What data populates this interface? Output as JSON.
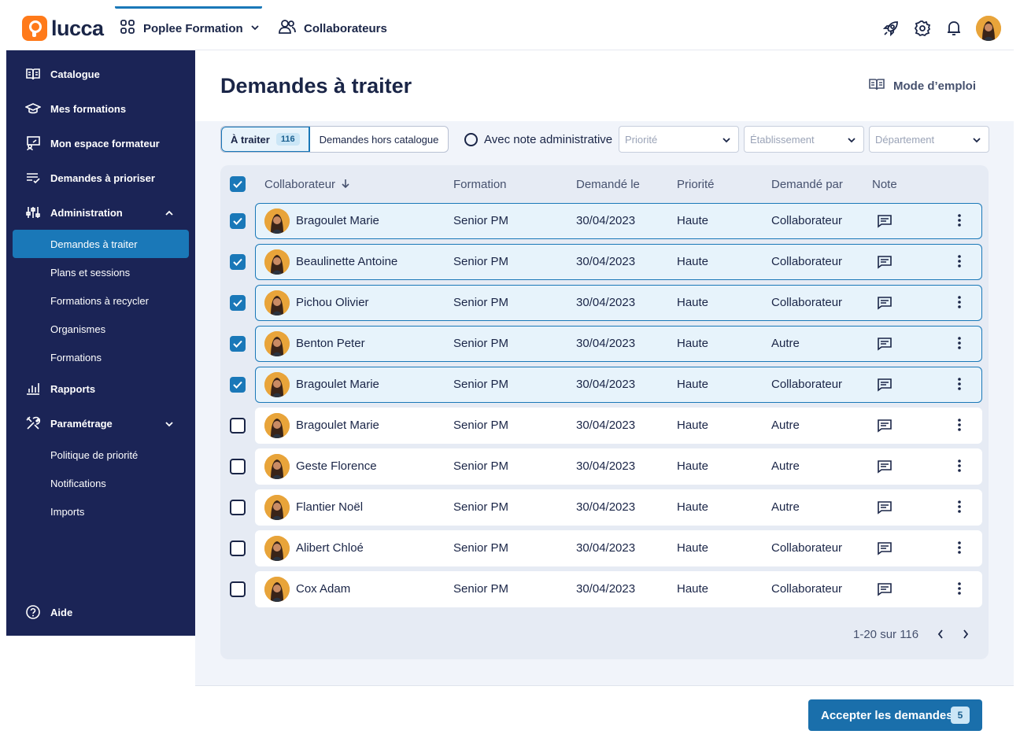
{
  "header": {
    "logo_text": "lucca",
    "app_switch_label": "Poplee Formation",
    "collab_label": "Collaborateurs",
    "icons": [
      "rocket-icon",
      "gear-icon",
      "bell-icon",
      "avatar"
    ]
  },
  "sidebar": {
    "items": [
      {
        "label": "Catalogue",
        "icon": "book-icon"
      },
      {
        "label": "Mes formations",
        "icon": "graduation-cap-icon"
      },
      {
        "label": "Mon espace formateur",
        "icon": "trainer-board-icon"
      },
      {
        "label": "Demandes à prioriser",
        "icon": "list-check-icon"
      },
      {
        "label": "Administration",
        "icon": "sliders-icon",
        "expanded": true
      }
    ],
    "admin_sub": [
      {
        "label": "Demandes à traiter",
        "active": true
      },
      {
        "label": "Plans et sessions"
      },
      {
        "label": "Formations à recycler"
      },
      {
        "label": "Organismes"
      },
      {
        "label": "Formations"
      }
    ],
    "rapports": {
      "label": "Rapports",
      "icon": "chart-bars-icon"
    },
    "parametrage": {
      "label": "Paramétrage",
      "icon": "tools-icon",
      "expanded": false
    },
    "param_sub": [
      {
        "label": "Politique de priorité"
      },
      {
        "label": "Notifications"
      },
      {
        "label": "Imports"
      }
    ],
    "aide": {
      "label": "Aide",
      "icon": "help-circle-icon"
    }
  },
  "main": {
    "title": "Demandes à traiter",
    "help_label": "Mode d’emploi",
    "tabs": {
      "active_label": "À traiter",
      "active_count": "116",
      "other_label": "Demandes hors catalogue"
    },
    "note_filter_label": "Avec note administrative",
    "filters": {
      "priority_placeholder": "Priorité",
      "establishment_placeholder": "Établissement",
      "department_placeholder": "Département"
    },
    "columns": [
      "Collaborateur",
      "Formation",
      "Demandé le",
      "Priorité",
      "Demandé par",
      "Note"
    ],
    "rows": [
      {
        "name": "Bragoulet Marie",
        "formation": "Senior PM",
        "date": "30/04/2023",
        "priority": "Haute",
        "by": "Collaborateur",
        "selected": true
      },
      {
        "name": "Beaulinette Antoine",
        "formation": "Senior PM",
        "date": "30/04/2023",
        "priority": "Haute",
        "by": "Collaborateur",
        "selected": true
      },
      {
        "name": "Pichou Olivier",
        "formation": "Senior PM",
        "date": "30/04/2023",
        "priority": "Haute",
        "by": "Collaborateur",
        "selected": true
      },
      {
        "name": "Benton Peter",
        "formation": "Senior PM",
        "date": "30/04/2023",
        "priority": "Haute",
        "by": "Autre",
        "selected": true
      },
      {
        "name": "Bragoulet Marie",
        "formation": "Senior PM",
        "date": "30/04/2023",
        "priority": "Haute",
        "by": "Collaborateur",
        "selected": true
      },
      {
        "name": "Bragoulet Marie",
        "formation": "Senior PM",
        "date": "30/04/2023",
        "priority": "Haute",
        "by": "Autre",
        "selected": false
      },
      {
        "name": "Geste Florence",
        "formation": "Senior PM",
        "date": "30/04/2023",
        "priority": "Haute",
        "by": "Autre",
        "selected": false
      },
      {
        "name": "Flantier Noël",
        "formation": "Senior PM",
        "date": "30/04/2023",
        "priority": "Haute",
        "by": "Autre",
        "selected": false
      },
      {
        "name": "Alibert Chloé",
        "formation": "Senior PM",
        "date": "30/04/2023",
        "priority": "Haute",
        "by": "Collaborateur",
        "selected": false
      },
      {
        "name": "Cox Adam",
        "formation": "Senior PM",
        "date": "30/04/2023",
        "priority": "Haute",
        "by": "Collaborateur",
        "selected": false
      }
    ],
    "pagination": "1-20 sur 116"
  },
  "footer": {
    "cta_label": "Accepter les demandes",
    "cta_count": "5"
  },
  "colors": {
    "sidebar_bg": "#1b2456",
    "accent": "#1a78b8",
    "cta": "#1a6fab",
    "logo": "#ff7a1a"
  }
}
